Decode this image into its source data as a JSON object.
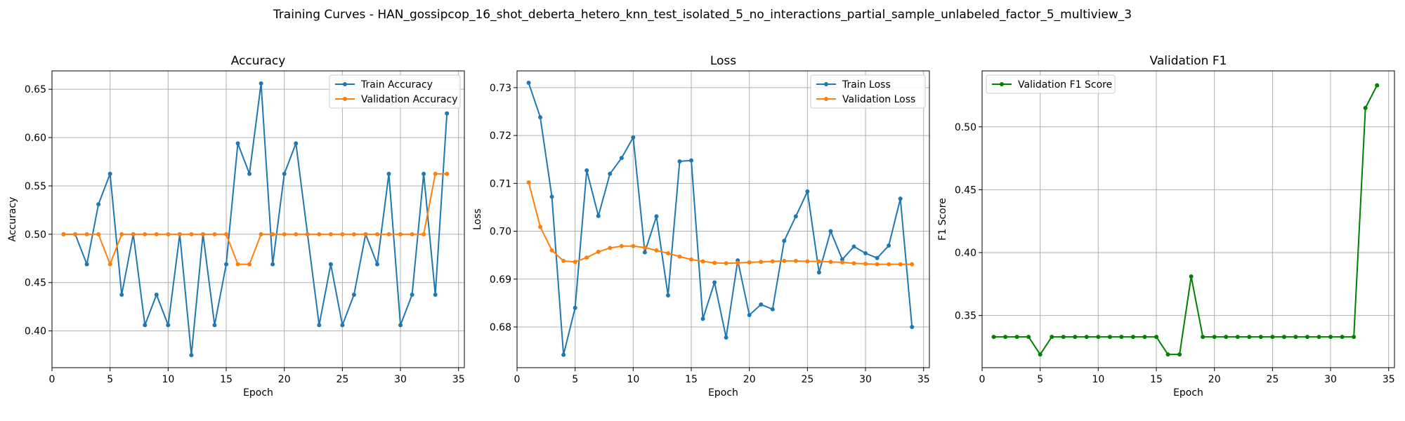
{
  "suptitle": "Training Curves - HAN_gossipcop_16_shot_deberta_hetero_knn_test_isolated_5_no_interactions_partial_sample_unlabeled_factor_5_multiview_3",
  "chart_data": [
    {
      "type": "line",
      "title": "Accuracy",
      "xlabel": "Epoch",
      "ylabel": "Accuracy",
      "xlim": [
        0,
        35.5
      ],
      "ylim": [
        0.362,
        0.669
      ],
      "xticks": [
        0,
        5,
        10,
        15,
        20,
        25,
        30,
        35
      ],
      "yticks": [
        0.4,
        0.45,
        0.5,
        0.55,
        0.6,
        0.65
      ],
      "ytick_labels": [
        "0.40",
        "0.45",
        "0.50",
        "0.55",
        "0.60",
        "0.65"
      ],
      "grid": true,
      "legend": "upper right",
      "x": [
        1,
        2,
        3,
        4,
        5,
        6,
        7,
        8,
        9,
        10,
        11,
        12,
        13,
        14,
        15,
        16,
        17,
        18,
        19,
        20,
        21,
        22,
        23,
        24,
        25,
        26,
        27,
        28,
        29,
        30,
        31,
        32,
        33,
        34
      ],
      "series": [
        {
          "name": "Train Accuracy",
          "color": "#1f77b4",
          "values": [
            0.5,
            0.5,
            0.469,
            0.531,
            0.5625,
            0.4375,
            0.5,
            0.406,
            0.4375,
            0.406,
            0.5,
            0.375,
            0.5,
            0.406,
            0.469,
            0.594,
            0.5625,
            0.656,
            0.469,
            0.5625,
            0.594,
            0.5,
            0.406,
            0.469,
            0.406,
            0.4375,
            0.5,
            0.469,
            0.5625,
            0.406,
            0.4375,
            0.5625,
            0.4375,
            0.625
          ]
        },
        {
          "name": "Validation Accuracy",
          "color": "#ff7f0e",
          "values": [
            0.5,
            0.5,
            0.5,
            0.5,
            0.469,
            0.5,
            0.5,
            0.5,
            0.5,
            0.5,
            0.5,
            0.5,
            0.5,
            0.5,
            0.5,
            0.469,
            0.469,
            0.5,
            0.5,
            0.5,
            0.5,
            0.5,
            0.5,
            0.5,
            0.5,
            0.5,
            0.5,
            0.5,
            0.5,
            0.5,
            0.5,
            0.5,
            0.5625,
            0.5625
          ]
        }
      ]
    },
    {
      "type": "line",
      "title": "Loss",
      "xlabel": "Epoch",
      "ylabel": "Loss",
      "xlim": [
        0,
        35.5
      ],
      "ylim": [
        0.6715,
        0.7335
      ],
      "xticks": [
        0,
        5,
        10,
        15,
        20,
        25,
        30,
        35
      ],
      "yticks": [
        0.68,
        0.69,
        0.7,
        0.71,
        0.72,
        0.73
      ],
      "ytick_labels": [
        "0.68",
        "0.69",
        "0.70",
        "0.71",
        "0.72",
        "0.73"
      ],
      "grid": true,
      "legend": "upper right",
      "x": [
        1,
        2,
        3,
        4,
        5,
        6,
        7,
        8,
        9,
        10,
        11,
        12,
        13,
        14,
        15,
        16,
        17,
        18,
        19,
        20,
        21,
        22,
        23,
        24,
        25,
        26,
        27,
        28,
        29,
        30,
        31,
        32,
        33,
        34
      ],
      "series": [
        {
          "name": "Train Loss",
          "color": "#1f77b4",
          "values": [
            0.731,
            0.7238,
            0.7072,
            0.6742,
            0.684,
            0.7127,
            0.7032,
            0.712,
            0.7153,
            0.7196,
            0.6956,
            0.7031,
            0.6866,
            0.7146,
            0.7148,
            0.6817,
            0.6893,
            0.6778,
            0.6939,
            0.6825,
            0.6847,
            0.6837,
            0.698,
            0.7031,
            0.7083,
            0.6914,
            0.7,
            0.6941,
            0.6968,
            0.6954,
            0.6944,
            0.697,
            0.7068,
            0.68
          ]
        },
        {
          "name": "Validation Loss",
          "color": "#ff7f0e",
          "values": [
            0.7102,
            0.7009,
            0.696,
            0.6938,
            0.6936,
            0.6945,
            0.6957,
            0.6965,
            0.6969,
            0.6969,
            0.6966,
            0.696,
            0.6954,
            0.6947,
            0.6941,
            0.6937,
            0.6934,
            0.6933,
            0.6934,
            0.6935,
            0.6936,
            0.6937,
            0.6938,
            0.6938,
            0.6937,
            0.6937,
            0.6936,
            0.6935,
            0.6933,
            0.6932,
            0.6931,
            0.6931,
            0.6931,
            0.6931
          ]
        }
      ]
    },
    {
      "type": "line",
      "title": "Validation F1",
      "xlabel": "Epoch",
      "ylabel": "F1 Score",
      "xlim": [
        0,
        35.5
      ],
      "ylim": [
        0.3085,
        0.5445
      ],
      "xticks": [
        0,
        5,
        10,
        15,
        20,
        25,
        30,
        35
      ],
      "yticks": [
        0.35,
        0.4,
        0.45,
        0.5
      ],
      "ytick_labels": [
        "0.35",
        "0.40",
        "0.45",
        "0.50"
      ],
      "grid": true,
      "legend": "upper left",
      "x": [
        1,
        2,
        3,
        4,
        5,
        6,
        7,
        8,
        9,
        10,
        11,
        12,
        13,
        14,
        15,
        16,
        17,
        18,
        19,
        20,
        21,
        22,
        23,
        24,
        25,
        26,
        27,
        28,
        29,
        30,
        31,
        32,
        33,
        34
      ],
      "series": [
        {
          "name": "Validation F1 Score",
          "color": "#008000",
          "values": [
            0.333,
            0.333,
            0.333,
            0.333,
            0.319,
            0.333,
            0.333,
            0.333,
            0.333,
            0.333,
            0.333,
            0.333,
            0.333,
            0.333,
            0.333,
            0.319,
            0.319,
            0.381,
            0.333,
            0.333,
            0.333,
            0.333,
            0.333,
            0.333,
            0.333,
            0.333,
            0.333,
            0.333,
            0.333,
            0.333,
            0.333,
            0.333,
            0.515,
            0.533
          ]
        }
      ]
    }
  ]
}
